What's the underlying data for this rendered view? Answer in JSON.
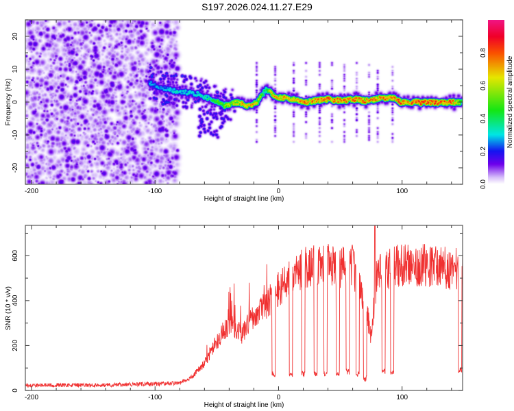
{
  "title": "S197.2026.024.11.27.E29",
  "chart_data": [
    {
      "type": "heatmap",
      "name": "spectrogram",
      "title": "S197.2026.024.11.27.E29",
      "xlabel": "Height of straight line (km)",
      "ylabel": "Frequency (Hz)",
      "xlim": [
        -205,
        149
      ],
      "ylim": [
        -25,
        25
      ],
      "xticks": [
        -200,
        -100,
        0,
        100
      ],
      "yticks": [
        -20,
        -10,
        0,
        10,
        20
      ],
      "xtick_labels": [
        "-200",
        "-100",
        "0",
        "100"
      ],
      "ytick_labels": [
        "-20",
        "-10",
        "0",
        "10",
        "20"
      ],
      "colorbar": {
        "label": "Normalized spectral amplitude",
        "range": [
          0,
          1
        ],
        "ticks": [
          0.0,
          0.2,
          0.4,
          0.6,
          0.8
        ],
        "tick_labels": [
          "0.0",
          "0.2",
          "0.4",
          "0.6",
          "0.8"
        ],
        "colormap": "rainbow (white-violet-blue-cyan-green-yellow-red-magenta)"
      },
      "noise_region_x": [
        -205,
        -82
      ],
      "noise_level": 0.12,
      "ridge": {
        "description": "Dominant frequency track (Hz) vs height (km) with peak normalized amplitude",
        "x": [
          -105,
          -95,
          -85,
          -75,
          -65,
          -55,
          -45,
          -35,
          -25,
          -18,
          -10,
          -5,
          0,
          10,
          20,
          30,
          40,
          50,
          60,
          70,
          80,
          90,
          100,
          110,
          120,
          130,
          140,
          149
        ],
        "frequency": [
          6,
          4.5,
          3.5,
          3,
          2.5,
          1,
          -1,
          0,
          -1,
          0,
          4,
          2.5,
          1.5,
          1,
          0,
          0.5,
          1,
          0.5,
          1,
          0.5,
          1,
          1.5,
          0,
          0,
          0,
          0,
          0,
          0
        ],
        "amplitude": [
          0.3,
          0.3,
          0.35,
          0.35,
          0.35,
          0.45,
          0.6,
          0.7,
          0.85,
          0.7,
          0.45,
          0.8,
          0.8,
          0.8,
          0.85,
          0.85,
          0.85,
          0.85,
          0.85,
          0.85,
          0.85,
          0.85,
          0.9,
          0.9,
          0.9,
          0.9,
          0.9,
          0.5
        ]
      },
      "vertical_streaks_x": [
        -18,
        -3,
        12,
        22,
        33,
        43,
        53,
        63,
        73,
        80,
        92
      ]
    },
    {
      "type": "line",
      "name": "snr",
      "xlabel": "Height of straight line (km)",
      "ylabel": "SNR (10 * v/v)",
      "xlim": [
        -205,
        149
      ],
      "ylim": [
        0,
        735
      ],
      "xticks": [
        -200,
        -100,
        0,
        100
      ],
      "yticks": [
        0,
        200,
        400,
        600
      ],
      "xtick_labels": [
        "-200",
        "-100",
        "0",
        "100"
      ],
      "ytick_labels": [
        "0",
        "200",
        "400",
        "600"
      ],
      "color": "#f03030",
      "envelope": {
        "description": "Approximate mean SNR level (envelope of the noisy trace)",
        "x": [
          -205,
          -150,
          -100,
          -80,
          -70,
          -60,
          -50,
          -40,
          -30,
          -20,
          -10,
          0,
          10,
          20,
          30,
          40,
          50,
          60,
          70,
          75,
          80,
          90,
          100,
          110,
          120,
          130,
          140,
          149
        ],
        "snr": [
          20,
          20,
          25,
          30,
          60,
          120,
          220,
          300,
          250,
          330,
          380,
          450,
          500,
          540,
          560,
          560,
          550,
          560,
          400,
          230,
          540,
          540,
          560,
          560,
          560,
          550,
          540,
          540
        ]
      },
      "dropouts": {
        "description": "Narrow dips to low SNR (km, approx minimum SNR)",
        "x": [
          -4,
          10,
          20,
          30,
          38,
          48,
          56,
          64,
          70,
          85,
          92,
          147
        ],
        "snr": [
          60,
          60,
          60,
          60,
          60,
          60,
          70,
          60,
          40,
          70,
          70,
          80
        ]
      },
      "peak": {
        "x": 78,
        "snr": 735
      }
    }
  ]
}
